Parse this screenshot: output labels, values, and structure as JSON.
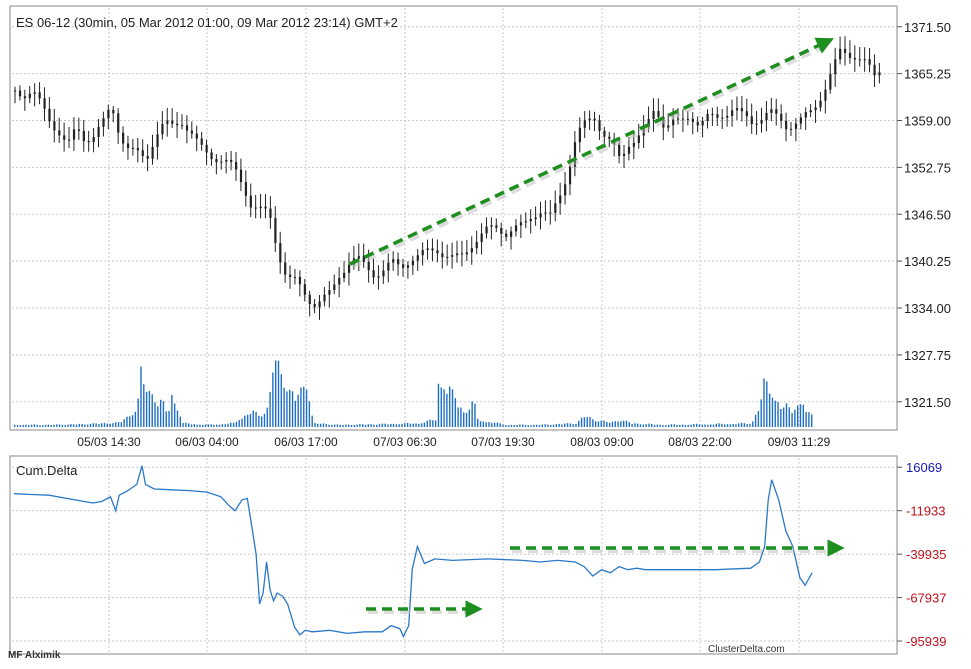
{
  "header": {
    "title": "ES 06-12 (30min, 05 Mar 2012 01:00, 09 Mar 2012 23:14) GMT+2"
  },
  "colors": {
    "candle": "#222222",
    "volume": "#1f6fc4",
    "cumdelta_line": "#2a78c7",
    "arrow": "#1e8f1e",
    "grid": "#c8c8c8",
    "cd_tick_positive": "#1a1ab4",
    "cd_tick_negative": "#c0121a"
  },
  "footer": {
    "left": "MF Alximik",
    "right": "ClusterDelta.com"
  },
  "chart_data": [
    {
      "type": "candlestick",
      "title": "ES 06-12 (30min, 05 Mar 2012 01:00, 09 Mar 2012 23:14) GMT+2",
      "ylim": [
        1318,
        1374
      ],
      "y_ticks": [
        "1371.50",
        "1365.25",
        "1359.00",
        "1352.75",
        "1346.50",
        "1340.25",
        "1334.00",
        "1327.75",
        "1321.50"
      ],
      "x_ticks": [
        "05/03 14:30",
        "06/03 04:00",
        "06/03 17:00",
        "07/03 06:30",
        "07/03 19:30",
        "08/03 09:00",
        "08/03 22:00",
        "09/03 11:29"
      ],
      "grid": true,
      "price_path": [
        [
          0,
          1363.0
        ],
        [
          5,
          1362.5
        ],
        [
          10,
          1362.8
        ],
        [
          15,
          1361.0
        ],
        [
          20,
          1359.0
        ],
        [
          25,
          1357.5
        ],
        [
          30,
          1355.5
        ],
        [
          35,
          1358.0
        ],
        [
          40,
          1356.5
        ],
        [
          45,
          1357.0
        ],
        [
          50,
          1358.5
        ],
        [
          55,
          1361.0
        ],
        [
          60,
          1357.0
        ],
        [
          65,
          1355.0
        ],
        [
          70,
          1354.5
        ],
        [
          75,
          1354.0
        ],
        [
          80,
          1357.0
        ],
        [
          85,
          1358.5
        ],
        [
          90,
          1358.2
        ],
        [
          95,
          1359.0
        ],
        [
          100,
          1357.5
        ],
        [
          105,
          1355.5
        ],
        [
          110,
          1354.5
        ],
        [
          115,
          1354.0
        ],
        [
          120,
          1353.5
        ],
        [
          125,
          1352.5
        ],
        [
          130,
          1350.5
        ],
        [
          135,
          1347.5
        ],
        [
          140,
          1347.0
        ],
        [
          145,
          1346.5
        ],
        [
          150,
          1341.5
        ],
        [
          155,
          1338.0
        ],
        [
          160,
          1337.5
        ],
        [
          165,
          1336.0
        ],
        [
          170,
          1334.5
        ],
        [
          175,
          1335.0
        ],
        [
          180,
          1336.0
        ],
        [
          185,
          1338.5
        ],
        [
          190,
          1340.0
        ],
        [
          195,
          1340.5
        ],
        [
          200,
          1339.5
        ],
        [
          205,
          1338.5
        ],
        [
          210,
          1339.0
        ],
        [
          215,
          1340.0
        ],
        [
          220,
          1339.5
        ],
        [
          225,
          1340.5
        ],
        [
          230,
          1340.8
        ],
        [
          235,
          1341.5
        ],
        [
          240,
          1342.0
        ],
        [
          245,
          1341.0
        ],
        [
          250,
          1340.5
        ],
        [
          255,
          1341.0
        ],
        [
          260,
          1342.5
        ],
        [
          265,
          1343.5
        ],
        [
          270,
          1344.5
        ],
        [
          275,
          1344.8
        ],
        [
          280,
          1344.0
        ],
        [
          285,
          1344.5
        ],
        [
          290,
          1345.0
        ],
        [
          295,
          1346.5
        ],
        [
          300,
          1347.0
        ],
        [
          305,
          1346.0
        ],
        [
          310,
          1348.5
        ],
        [
          315,
          1352.0
        ],
        [
          320,
          1357.0
        ],
        [
          325,
          1358.5
        ],
        [
          330,
          1359.5
        ],
        [
          335,
          1357.5
        ],
        [
          340,
          1356.0
        ],
        [
          345,
          1353.5
        ],
        [
          350,
          1356.0
        ],
        [
          355,
          1357.0
        ],
        [
          360,
          1358.0
        ],
        [
          365,
          1360.5
        ],
        [
          370,
          1358.5
        ],
        [
          375,
          1359.0
        ],
        [
          380,
          1358.5
        ],
        [
          385,
          1359.5
        ],
        [
          390,
          1358.8
        ],
        [
          395,
          1359.5
        ],
        [
          400,
          1359.0
        ],
        [
          405,
          1360.0
        ],
        [
          410,
          1361.0
        ],
        [
          415,
          1359.5
        ],
        [
          420,
          1358.5
        ],
        [
          425,
          1359.5
        ],
        [
          430,
          1360.5
        ],
        [
          435,
          1359.0
        ],
        [
          440,
          1358.0
        ],
        [
          445,
          1359.0
        ],
        [
          450,
          1359.5
        ],
        [
          455,
          1360.0
        ],
        [
          460,
          1362.5
        ],
        [
          465,
          1365.5
        ],
        [
          470,
          1368.0
        ],
        [
          475,
          1367.5
        ],
        [
          480,
          1367.8
        ],
        [
          485,
          1367.0
        ],
        [
          490,
          1364.5
        ],
        [
          495,
          1366.0
        ]
      ]
    },
    {
      "type": "bar",
      "name": "volume",
      "volume_profile": [
        [
          0,
          0.03
        ],
        [
          20,
          0.03
        ],
        [
          40,
          0.04
        ],
        [
          60,
          0.06
        ],
        [
          70,
          0.25
        ],
        [
          72,
          0.7
        ],
        [
          74,
          0.6
        ],
        [
          76,
          0.45
        ],
        [
          78,
          0.55
        ],
        [
          80,
          0.4
        ],
        [
          82,
          0.3
        ],
        [
          84,
          0.35
        ],
        [
          86,
          0.2
        ],
        [
          88,
          0.25
        ],
        [
          90,
          0.5
        ],
        [
          92,
          0.3
        ],
        [
          94,
          0.2
        ],
        [
          96,
          0.05
        ],
        [
          110,
          0.03
        ],
        [
          125,
          0.05
        ],
        [
          130,
          0.15
        ],
        [
          135,
          0.2
        ],
        [
          140,
          0.15
        ],
        [
          145,
          0.3
        ],
        [
          147,
          0.9
        ],
        [
          149,
          0.8
        ],
        [
          151,
          0.75
        ],
        [
          153,
          0.7
        ],
        [
          155,
          0.6
        ],
        [
          157,
          0.5
        ],
        [
          159,
          0.45
        ],
        [
          161,
          0.4
        ],
        [
          163,
          0.45
        ],
        [
          165,
          0.55
        ],
        [
          167,
          0.65
        ],
        [
          169,
          0.2
        ],
        [
          171,
          0.05
        ],
        [
          185,
          0.03
        ],
        [
          210,
          0.04
        ],
        [
          230,
          0.05
        ],
        [
          240,
          0.1
        ],
        [
          242,
          0.75
        ],
        [
          244,
          0.6
        ],
        [
          246,
          0.55
        ],
        [
          248,
          0.5
        ],
        [
          250,
          0.4
        ],
        [
          252,
          0.35
        ],
        [
          254,
          0.3
        ],
        [
          256,
          0.25
        ],
        [
          258,
          0.2
        ],
        [
          260,
          0.35
        ],
        [
          262,
          0.3
        ],
        [
          264,
          0.1
        ],
        [
          280,
          0.03
        ],
        [
          300,
          0.03
        ],
        [
          320,
          0.05
        ],
        [
          325,
          0.15
        ],
        [
          328,
          0.12
        ],
        [
          330,
          0.1
        ],
        [
          335,
          0.08
        ],
        [
          340,
          0.06
        ],
        [
          345,
          0.1
        ],
        [
          348,
          0.08
        ],
        [
          352,
          0.05
        ],
        [
          370,
          0.03
        ],
        [
          400,
          0.04
        ],
        [
          420,
          0.05
        ],
        [
          425,
          0.3
        ],
        [
          427,
          0.55
        ],
        [
          429,
          0.55
        ],
        [
          431,
          0.5
        ],
        [
          433,
          0.45
        ],
        [
          435,
          0.35
        ],
        [
          437,
          0.25
        ],
        [
          439,
          0.3
        ],
        [
          441,
          0.25
        ],
        [
          443,
          0.2
        ],
        [
          446,
          0.35
        ],
        [
          448,
          0.3
        ],
        [
          450,
          0.3
        ],
        [
          452,
          0.2
        ],
        [
          454,
          0.15
        ]
      ]
    },
    {
      "type": "line",
      "title": "Cum.Delta",
      "y_ticks": [
        "16069",
        "-11933",
        "-39935",
        "-67937",
        "-95939"
      ],
      "ylim": [
        -103000,
        22000
      ],
      "series": [
        {
          "values": [
            [
              0,
              -1000
            ],
            [
              10,
              -1500
            ],
            [
              20,
              -2000
            ],
            [
              30,
              -4000
            ],
            [
              40,
              -6000
            ],
            [
              45,
              -7000
            ],
            [
              50,
              -6000
            ],
            [
              55,
              -3000
            ],
            [
              58,
              -12000
            ],
            [
              60,
              -2000
            ],
            [
              65,
              1000
            ],
            [
              70,
              5000
            ],
            [
              73,
              17000
            ],
            [
              75,
              5000
            ],
            [
              80,
              2000
            ],
            [
              90,
              1500
            ],
            [
              100,
              1000
            ],
            [
              110,
              0
            ],
            [
              118,
              -3000
            ],
            [
              122,
              -8000
            ],
            [
              126,
              -12000
            ],
            [
              130,
              -5000
            ],
            [
              133,
              -4000
            ],
            [
              136,
              -25000
            ],
            [
              138,
              -40000
            ],
            [
              140,
              -72000
            ],
            [
              142,
              -65000
            ],
            [
              144,
              -45000
            ],
            [
              146,
              -63000
            ],
            [
              148,
              -70000
            ],
            [
              150,
              -65000
            ],
            [
              153,
              -67000
            ],
            [
              156,
              -72000
            ],
            [
              160,
              -87000
            ],
            [
              163,
              -92000
            ],
            [
              166,
              -89000
            ],
            [
              170,
              -90000
            ],
            [
              180,
              -89000
            ],
            [
              190,
              -91000
            ],
            [
              200,
              -90000
            ],
            [
              210,
              -90000
            ],
            [
              215,
              -86000
            ],
            [
              220,
              -88000
            ],
            [
              222,
              -93000
            ],
            [
              225,
              -86000
            ],
            [
              227,
              -50000
            ],
            [
              230,
              -35000
            ],
            [
              234,
              -46000
            ],
            [
              240,
              -43000
            ],
            [
              250,
              -44000
            ],
            [
              270,
              -43000
            ],
            [
              290,
              -44000
            ],
            [
              300,
              -45000
            ],
            [
              310,
              -44000
            ],
            [
              320,
              -45000
            ],
            [
              325,
              -48000
            ],
            [
              330,
              -54000
            ],
            [
              335,
              -50000
            ],
            [
              340,
              -52000
            ],
            [
              345,
              -48000
            ],
            [
              350,
              -50000
            ],
            [
              355,
              -49000
            ],
            [
              360,
              -50000
            ],
            [
              380,
              -50000
            ],
            [
              400,
              -50000
            ],
            [
              420,
              -49000
            ],
            [
              425,
              -45000
            ],
            [
              428,
              -35000
            ],
            [
              430,
              -5000
            ],
            [
              432,
              8000
            ],
            [
              436,
              -5000
            ],
            [
              440,
              -25000
            ],
            [
              444,
              -35000
            ],
            [
              448,
              -55000
            ],
            [
              451,
              -60000
            ],
            [
              455,
              -52000
            ]
          ]
        }
      ]
    }
  ],
  "annotations": {
    "arrow_main": "green dashed arrow pointing up-right",
    "arrow_delta_low": "green dashed arrow pointing right",
    "arrow_delta_high": "green dashed arrow pointing right"
  }
}
